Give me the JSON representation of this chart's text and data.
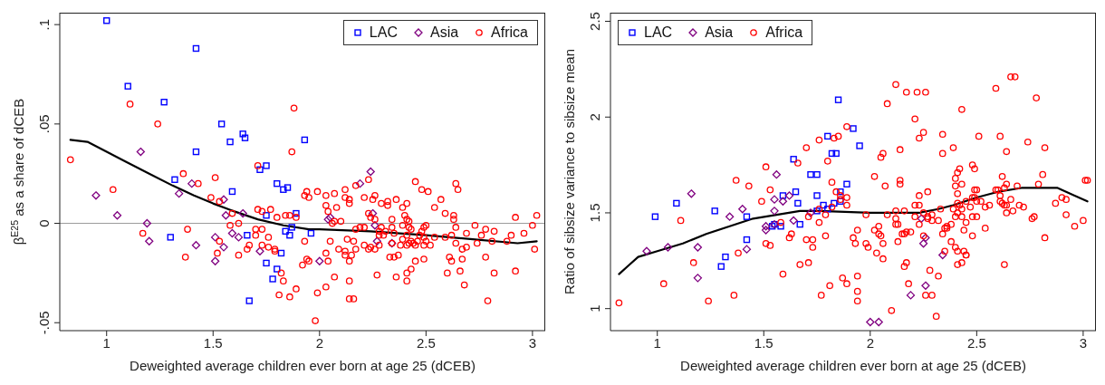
{
  "chart_data": [
    {
      "type": "scatter",
      "xlabel": "Deweighted average children ever born at age 25 (dCEB)",
      "ylabel": "β$^{E25}$ as a share of dCEB",
      "xlim": [
        0.78,
        3.06
      ],
      "ylim": [
        -0.054,
        0.106
      ],
      "xticks": [
        1,
        1.5,
        2,
        2.5,
        3
      ],
      "yticks": [
        {
          "value": -0.05,
          "label": "-.05"
        },
        0,
        {
          "value": 0.05,
          "label": ".05"
        },
        {
          "value": 0.1,
          "label": ".1"
        }
      ],
      "legend": "top right",
      "ref_lines": [
        {
          "axis": "y",
          "value": 0,
          "color": "#999999"
        }
      ],
      "series": [
        {
          "name": "LAC",
          "color": "#0000ff",
          "marker": "square",
          "x": [
            1.0,
            1.42,
            1.1,
            1.27,
            1.54,
            1.64,
            1.65,
            1.58,
            1.42,
            1.32,
            1.75,
            1.72,
            1.59,
            1.8,
            1.85,
            1.83,
            1.75,
            1.89,
            1.3,
            1.66,
            1.84,
            1.87,
            1.86,
            1.96,
            1.82,
            1.75,
            1.8,
            1.78,
            1.67,
            1.93
          ],
          "values": [
            0.102,
            0.088,
            0.069,
            0.061,
            0.05,
            0.045,
            0.043,
            0.041,
            0.036,
            0.022,
            0.029,
            0.027,
            0.016,
            0.02,
            0.018,
            0.017,
            0.004,
            0.005,
            -0.007,
            -0.006,
            -0.004,
            -0.002,
            -0.006,
            -0.005,
            -0.015,
            -0.02,
            -0.023,
            -0.028,
            -0.039,
            0.042
          ]
        },
        {
          "name": "Asia",
          "color": "#800080",
          "marker": "diamond",
          "x": [
            0.95,
            1.05,
            1.16,
            1.19,
            1.2,
            1.34,
            1.4,
            1.42,
            1.51,
            1.51,
            1.55,
            1.56,
            1.55,
            1.59,
            1.62,
            1.64,
            1.72,
            2.24,
            2.19,
            2.04,
            2.05,
            2.25,
            2.26,
            2.27,
            2.34,
            2.0
          ],
          "values": [
            0.014,
            0.004,
            0.036,
            0.0,
            -0.009,
            0.015,
            0.02,
            -0.011,
            -0.007,
            -0.019,
            0.012,
            0.004,
            -0.012,
            -0.005,
            -0.007,
            0.005,
            -0.014,
            0.026,
            0.02,
            0.002,
            0.003,
            0.005,
            -0.001,
            -0.009,
            -0.01,
            -0.019
          ]
        },
        {
          "name": "Africa",
          "color": "#ff0000",
          "marker": "circle",
          "x": [
            0.83,
            1.11,
            1.03,
            1.24,
            1.17,
            1.36,
            1.43,
            1.38,
            1.37,
            1.51,
            1.49,
            1.53,
            1.53,
            1.52,
            1.59,
            1.58,
            1.62,
            1.62,
            1.66,
            1.67,
            1.7,
            1.7,
            1.71,
            1.71,
            1.73,
            1.73,
            1.73,
            1.76,
            1.76,
            1.77,
            1.79,
            1.79,
            1.8,
            1.82,
            1.83,
            1.81,
            1.86,
            1.89,
            1.88,
            1.87,
            1.84,
            1.86,
            1.89,
            1.93,
            1.92,
            1.94,
            1.95,
            1.93,
            1.94,
            1.95,
            1.99,
            2.03,
            2.03,
            2.04,
            2.07,
            2.08,
            2.12,
            2.12,
            2.14,
            2.14,
            2.17,
            2.21,
            2.23,
            2.25,
            2.26,
            2.23,
            2.24,
            2.26,
            2.29,
            2.32,
            2.32,
            2.36,
            2.34,
            2.39,
            2.41,
            2.4,
            2.41,
            2.42,
            2.45,
            2.48,
            2.51,
            2.54,
            2.57,
            2.59,
            2.63,
            2.64,
            2.65,
            2.63,
            2.64,
            2.92,
            3.02,
            3.0,
            3.01,
            2.96,
            2.9,
            2.88,
            2.82,
            2.81,
            2.78,
            2.76,
            2.74,
            2.73,
            2.69,
            2.67,
            2.69,
            2.67,
            2.66,
            2.68,
            2.78,
            2.82,
            2.92,
            2.79,
            2.62,
            2.59,
            2.64,
            2.61,
            2.62,
            2.6,
            2.54,
            2.52,
            2.5,
            2.49,
            2.5,
            2.49,
            2.48,
            2.47,
            2.49,
            2.49,
            2.45,
            2.46,
            2.44,
            2.43,
            2.42,
            2.45,
            2.43,
            2.41,
            2.41,
            2.36,
            2.39,
            2.42,
            2.43,
            2.41,
            2.39,
            2.38,
            2.41,
            2.37,
            2.35,
            2.33,
            2.35,
            2.34,
            2.34,
            2.31,
            2.3,
            2.29,
            2.28,
            2.28,
            2.28,
            2.27,
            2.26,
            2.24,
            2.23,
            2.21,
            2.21,
            2.19,
            2.17,
            2.15,
            2.17,
            2.14,
            2.16,
            2.14,
            2.14,
            2.12,
            2.12,
            2.13,
            2.16,
            2.1,
            2.07,
            2.06,
            2.05,
            2.09,
            2.04,
            2.03,
            2.07,
            2.03,
            1.99,
            1.98
          ],
          "values": [
            0.032,
            0.06,
            0.017,
            0.05,
            -0.005,
            0.025,
            0.02,
            -0.003,
            -0.017,
            0.023,
            0.013,
            0.011,
            -0.009,
            -0.015,
            0.005,
            -0.001,
            0.0,
            -0.016,
            -0.013,
            -0.011,
            -0.003,
            -0.006,
            0.029,
            0.007,
            0.006,
            -0.003,
            -0.011,
            -0.007,
            -0.012,
            0.007,
            -0.013,
            -0.014,
            0.003,
            -0.025,
            -0.029,
            -0.036,
            -0.037,
            -0.033,
            0.058,
            0.036,
            0.004,
            0.004,
            0.003,
            -0.009,
            -0.021,
            -0.018,
            -0.019,
            0.014,
            0.016,
            0.013,
            0.016,
            0.009,
            0.014,
            0.006,
            0.015,
            0.008,
            0.017,
            0.013,
            0.01,
            0.012,
            0.019,
            0.013,
            0.022,
            0.012,
            0.014,
            0.005,
            0.003,
            0.002,
            0.01,
            0.011,
            0.009,
            0.012,
            0.002,
            0.008,
            0.01,
            0.004,
            0.002,
            0.001,
            0.021,
            0.017,
            0.016,
            0.008,
            0.012,
            0.005,
            0.004,
            0.02,
            0.017,
            0.002,
            -0.002,
            0.003,
            0.004,
            -0.001,
            -0.013,
            -0.005,
            -0.006,
            -0.009,
            -0.004,
            -0.009,
            -0.003,
            -0.006,
            -0.01,
            -0.001,
            -0.005,
            -0.013,
            -0.012,
            -0.018,
            -0.024,
            -0.031,
            -0.017,
            -0.025,
            -0.024,
            -0.039,
            -0.006,
            -0.007,
            -0.01,
            -0.017,
            -0.019,
            -0.025,
            -0.007,
            -0.011,
            -0.009,
            -0.011,
            -0.001,
            -0.002,
            -0.004,
            -0.006,
            -0.007,
            -0.018,
            -0.011,
            -0.009,
            -0.01,
            -0.009,
            -0.01,
            -0.019,
            -0.023,
            -0.025,
            -0.029,
            -0.027,
            -0.001,
            -0.002,
            -0.003,
            -0.006,
            -0.008,
            -0.011,
            -0.011,
            -0.016,
            -0.017,
            -0.017,
            -0.005,
            -0.002,
            -0.01,
            -0.004,
            -0.006,
            -0.002,
            -0.004,
            -0.006,
            -0.011,
            -0.026,
            -0.013,
            -0.012,
            -0.013,
            -0.011,
            -0.002,
            -0.002,
            -0.003,
            -0.016,
            -0.013,
            -0.029,
            -0.038,
            -0.038,
            -0.019,
            -0.016,
            -0.014,
            -0.008,
            -0.009,
            0.001,
            0.001,
            0.0,
            -0.009,
            -0.013,
            -0.019,
            -0.015,
            -0.027,
            -0.032,
            -0.035,
            -0.049
          ]
        },
        {
          "type": "line",
          "color": "#000000",
          "marker": "none",
          "line_style": "solid",
          "x": [
            0.83,
            0.91,
            1.0,
            1.09,
            1.2,
            1.31,
            1.41,
            1.5,
            1.6,
            1.71,
            1.83,
            1.95,
            2.0,
            2.24,
            2.5,
            2.72,
            2.93,
            3.02
          ],
          "values": [
            0.042,
            0.041,
            0.036,
            0.031,
            0.025,
            0.019,
            0.014,
            0.01,
            0.006,
            0.002,
            -0.001,
            -0.003,
            -0.003,
            -0.004,
            -0.006,
            -0.008,
            -0.01,
            -0.009
          ]
        }
      ]
    },
    {
      "type": "scatter",
      "xlabel": "Deweighted average children ever born at age 25 (dCEB)",
      "ylabel": "Ratio of sibsize variance to sibsize mean",
      "xlim": [
        0.78,
        3.06
      ],
      "ylim": [
        0.885,
        2.545
      ],
      "xticks": [
        1,
        1.5,
        2,
        2.5,
        3
      ],
      "yticks": [
        1,
        1.5,
        2,
        2.5
      ],
      "legend": "top left",
      "series": [
        {
          "name": "LAC",
          "color": "#0000ff",
          "marker": "square",
          "x": [
            0.99,
            1.09,
            1.27,
            1.32,
            1.3,
            1.42,
            1.42,
            1.54,
            1.55,
            1.58,
            1.59,
            1.64,
            1.65,
            1.66,
            1.67,
            1.72,
            1.75,
            1.75,
            1.75,
            1.78,
            1.8,
            1.83,
            1.8,
            1.82,
            1.84,
            1.85,
            1.92,
            1.95,
            1.89,
            1.86,
            1.86
          ],
          "values": [
            1.48,
            1.55,
            1.51,
            1.27,
            1.22,
            1.48,
            1.36,
            1.43,
            1.44,
            1.43,
            1.59,
            1.78,
            1.61,
            1.55,
            1.44,
            1.7,
            1.7,
            1.59,
            1.51,
            1.54,
            1.52,
            1.55,
            1.9,
            1.81,
            1.81,
            2.09,
            1.94,
            1.85,
            1.65,
            1.61,
            1.56
          ]
        },
        {
          "name": "Asia",
          "color": "#800080",
          "marker": "diamond",
          "x": [
            0.95,
            1.05,
            1.16,
            1.19,
            1.19,
            1.34,
            1.4,
            1.42,
            1.51,
            1.51,
            1.55,
            1.55,
            1.56,
            1.55,
            1.59,
            1.62,
            1.64,
            1.72,
            2.24,
            2.26,
            2.25,
            2.34,
            2.26,
            2.19,
            2.0,
            2.04
          ],
          "values": [
            1.3,
            1.32,
            1.6,
            1.32,
            1.16,
            1.48,
            1.52,
            1.31,
            1.43,
            1.41,
            1.57,
            1.51,
            1.7,
            1.44,
            1.56,
            1.59,
            1.46,
            1.5,
            1.47,
            1.37,
            1.34,
            1.28,
            1.12,
            1.07,
            0.93,
            0.93
          ]
        },
        {
          "name": "Africa",
          "color": "#ff0000",
          "marker": "circle",
          "x": [
            0.82,
            1.03,
            1.11,
            1.17,
            1.24,
            1.36,
            1.37,
            1.38,
            1.43,
            1.49,
            1.51,
            1.53,
            1.51,
            1.53,
            1.58,
            1.59,
            1.62,
            1.63,
            1.66,
            1.67,
            1.7,
            1.7,
            1.71,
            1.71,
            1.73,
            1.73,
            1.76,
            1.76,
            1.76,
            1.77,
            1.79,
            1.79,
            1.8,
            1.81,
            1.82,
            1.83,
            1.84,
            1.85,
            1.86,
            1.86,
            1.89,
            1.89,
            1.82,
            1.89,
            1.87,
            1.89,
            1.94,
            1.92,
            1.93,
            1.94,
            1.94,
            1.94,
            1.98,
            1.98,
            1.99,
            2.02,
            2.02,
            2.04,
            2.03,
            2.04,
            2.05,
            2.06,
            2.06,
            2.05,
            2.06,
            2.07,
            2.08,
            2.08,
            2.1,
            2.12,
            2.12,
            2.12,
            2.12,
            2.13,
            2.13,
            2.14,
            2.14,
            2.14,
            2.16,
            2.17,
            2.15,
            2.16,
            2.17,
            2.19,
            2.17,
            2.16,
            2.18,
            2.21,
            2.21,
            2.23,
            2.21,
            2.23,
            2.22,
            2.26,
            2.25,
            2.23,
            2.25,
            2.23,
            2.25,
            2.27,
            2.26,
            2.29,
            2.28,
            2.27,
            2.29,
            2.27,
            2.29,
            2.32,
            2.32,
            2.31,
            2.33,
            2.34,
            2.34,
            2.34,
            2.35,
            2.36,
            2.36,
            2.38,
            2.35,
            2.38,
            2.4,
            2.41,
            2.39,
            2.43,
            2.4,
            2.41,
            2.42,
            2.4,
            2.43,
            2.41,
            2.39,
            2.41,
            2.43,
            2.42,
            2.41,
            2.43,
            2.4,
            2.47,
            2.45,
            2.48,
            2.49,
            2.49,
            2.5,
            2.48,
            2.49,
            2.45,
            2.48,
            2.5,
            2.44,
            2.48,
            2.44,
            2.45,
            2.45,
            2.43,
            2.41,
            2.51,
            2.5,
            2.52,
            2.54,
            2.54,
            2.56,
            2.59,
            2.6,
            2.59,
            2.61,
            2.64,
            2.62,
            2.64,
            2.63,
            2.61,
            2.61,
            2.62,
            2.64,
            2.63,
            2.66,
            2.69,
            2.64,
            2.67,
            2.7,
            2.72,
            2.63,
            2.66,
            2.68,
            2.74,
            2.76,
            2.77,
            2.78,
            2.82,
            2.81,
            2.79,
            2.82,
            2.87,
            2.9,
            2.92,
            2.92,
            2.96,
            3.0,
            3.01,
            3.02
          ],
          "values": [
            1.03,
            1.13,
            1.46,
            1.24,
            1.04,
            1.07,
            1.67,
            1.29,
            1.64,
            1.56,
            1.74,
            1.62,
            1.34,
            1.33,
            1.45,
            1.18,
            1.37,
            1.39,
            1.76,
            1.23,
            1.36,
            1.84,
            1.48,
            1.24,
            1.36,
            1.32,
            1.52,
            1.45,
            1.88,
            1.07,
            1.38,
            1.49,
            1.77,
            1.12,
            1.66,
            1.89,
            1.61,
            1.9,
            1.59,
            1.57,
            1.58,
            1.54,
            1.53,
            1.95,
            1.16,
            1.13,
            1.41,
            1.37,
            1.34,
            1.09,
            1.04,
            1.17,
            1.49,
            1.34,
            1.32,
            1.69,
            1.41,
            1.43,
            1.29,
            1.39,
            1.38,
            1.26,
            1.34,
            1.79,
            1.81,
            1.64,
            2.07,
            1.49,
            0.99,
            2.17,
            1.51,
            1.47,
            1.44,
            1.44,
            1.35,
            1.83,
            1.67,
            1.65,
            1.51,
            2.13,
            1.39,
            1.39,
            1.4,
            1.4,
            1.24,
            1.22,
            1.13,
            1.99,
            1.54,
            1.54,
            1.48,
            1.89,
            2.13,
            2.13,
            1.92,
            1.59,
            1.5,
            1.44,
            1.38,
            1.61,
            1.07,
            1.07,
            1.2,
            1.48,
            1.49,
            1.47,
            1.46,
            1.46,
            1.17,
            0.96,
            1.52,
            1.91,
            1.81,
            1.39,
            1.42,
            1.43,
            1.42,
            1.44,
            1.3,
            1.35,
            1.32,
            1.3,
            1.84,
            2.04,
            1.68,
            1.71,
            1.73,
            1.64,
            1.65,
            1.6,
            1.52,
            1.5,
            1.52,
            1.54,
            1.55,
            1.48,
            1.48,
            1.53,
            1.56,
            1.58,
            1.58,
            1.62,
            1.62,
            1.75,
            1.73,
            1.45,
            1.48,
            1.48,
            1.41,
            1.38,
            1.3,
            1.28,
            1.28,
            1.24,
            1.23,
            1.9,
            1.56,
            1.56,
            1.42,
            1.53,
            1.54,
            1.62,
            1.62,
            2.15,
            1.9,
            1.82,
            1.69,
            1.65,
            1.63,
            1.59,
            1.56,
            1.55,
            1.54,
            1.54,
            1.57,
            1.64,
            1.5,
            1.51,
            1.54,
            1.53,
            1.23,
            2.21,
            2.21,
            1.87,
            1.47,
            1.48,
            2.1,
            1.84,
            1.7,
            1.65,
            1.37,
            1.55,
            1.58,
            1.57,
            1.49,
            1.43,
            1.46,
            1.67,
            1.67
          ]
        },
        {
          "type": "line",
          "color": "#000000",
          "marker": "none",
          "line_style": "solid",
          "x": [
            0.82,
            0.87,
            0.91,
            1.0,
            1.12,
            1.23,
            1.34,
            1.45,
            1.56,
            1.67,
            1.76,
            2.0,
            2.23,
            2.32,
            2.39,
            2.5,
            2.6,
            2.71,
            2.8,
            2.88,
            2.96,
            3.02
          ],
          "values": [
            1.18,
            1.23,
            1.27,
            1.3,
            1.34,
            1.39,
            1.43,
            1.47,
            1.49,
            1.51,
            1.51,
            1.5,
            1.5,
            1.52,
            1.54,
            1.58,
            1.61,
            1.63,
            1.63,
            1.63,
            1.59,
            1.56
          ]
        }
      ]
    }
  ]
}
